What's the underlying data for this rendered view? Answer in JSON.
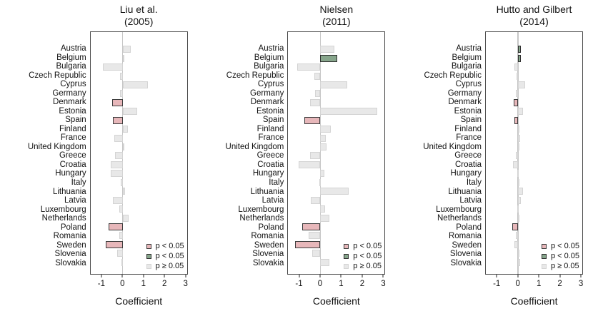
{
  "figure": {
    "x_range": [
      -1.55,
      3.1
    ],
    "x_ticks": [
      -1,
      0,
      1,
      2,
      3
    ],
    "axis_label": "Coefficient",
    "legend": [
      {
        "key": "sig_neg",
        "label": "p < 0.05"
      },
      {
        "key": "sig_pos",
        "label": "p < 0.05"
      },
      {
        "key": "ns",
        "label": "p ≥ 0.05"
      }
    ],
    "colors": {
      "sig_neg": {
        "fill": "#e7b7ba",
        "border": "#3c3c3c"
      },
      "sig_pos": {
        "fill": "#87a68c",
        "border": "#2e2e2e"
      },
      "ns": {
        "fill": "#e8e8e8",
        "border": "#d4d4d4"
      },
      "zero_line": "#c6c6c6",
      "box_border": "#4a4a4a"
    }
  },
  "chart_data": [
    {
      "type": "bar",
      "orientation": "horizontal",
      "title": "Liu et al.",
      "subtitle": "(2005)",
      "xlabel": "Coefficient",
      "xlim": [
        -1.55,
        3.1
      ],
      "x_ticks": [
        -1,
        0,
        1,
        2,
        3
      ],
      "grid": false,
      "legend_position": "bottom-right-inside",
      "categories": [
        "Austria",
        "Belgium",
        "Bulgaria",
        "Czech Republic",
        "Cyprus",
        "Germany",
        "Denmark",
        "Estonia",
        "Spain",
        "Finland",
        "France",
        "United Kingdom",
        "Greece",
        "Croatia",
        "Hungary",
        "Italy",
        "Lithuania",
        "Latvia",
        "Luxembourg",
        "Netherlands",
        "Poland",
        "Romania",
        "Sweden",
        "Slovenia",
        "Slovakia"
      ],
      "values": [
        0.4,
        0.08,
        -0.94,
        -0.13,
        1.21,
        -0.12,
        -0.5,
        0.7,
        -0.48,
        0.25,
        -0.4,
        0.02,
        -0.37,
        -0.58,
        -0.58,
        -0.08,
        0.1,
        -0.47,
        -0.17,
        0.27,
        -0.67,
        -0.15,
        -0.81,
        -0.28,
        -0.07
      ],
      "significance": [
        "ns",
        "ns",
        "ns",
        "ns",
        "ns",
        "ns",
        "sig_neg",
        "ns",
        "sig_neg",
        "ns",
        "ns",
        "ns",
        "ns",
        "ns",
        "ns",
        "ns",
        "ns",
        "ns",
        "ns",
        "ns",
        "sig_neg",
        "ns",
        "sig_neg",
        "ns",
        "ns"
      ]
    },
    {
      "type": "bar",
      "orientation": "horizontal",
      "title": "Nielsen",
      "subtitle": "(2011)",
      "xlabel": "Coefficient",
      "xlim": [
        -1.55,
        3.1
      ],
      "x_ticks": [
        -1,
        0,
        1,
        2,
        3
      ],
      "grid": false,
      "legend_position": "bottom-right-inside",
      "categories": [
        "Austria",
        "Belgium",
        "Bulgaria",
        "Czech Republic",
        "Cyprus",
        "Germany",
        "Denmark",
        "Estonia",
        "Spain",
        "Finland",
        "France",
        "United Kingdom",
        "Greece",
        "Croatia",
        "Hungary",
        "Italy",
        "Lithuania",
        "Latvia",
        "Luxembourg",
        "Netherlands",
        "Poland",
        "Romania",
        "Sweden",
        "Slovenia",
        "Slovakia"
      ],
      "values": [
        0.68,
        0.8,
        -1.11,
        -0.28,
        1.3,
        -0.26,
        -0.48,
        2.75,
        -0.76,
        0.49,
        0.26,
        0.31,
        -0.5,
        -1.06,
        0.19,
        -0.06,
        1.36,
        -0.45,
        0.22,
        0.45,
        -0.88,
        -0.55,
        -1.21,
        -0.4,
        0.43
      ],
      "significance": [
        "ns",
        "sig_pos",
        "ns",
        "ns",
        "ns",
        "ns",
        "ns",
        "ns",
        "sig_neg",
        "ns",
        "ns",
        "ns",
        "ns",
        "ns",
        "ns",
        "ns",
        "ns",
        "ns",
        "ns",
        "ns",
        "sig_neg",
        "ns",
        "sig_neg",
        "ns",
        "ns"
      ]
    },
    {
      "type": "bar",
      "orientation": "horizontal",
      "title": "Hutto and Gilbert",
      "subtitle": "(2014)",
      "xlabel": "Coefficient",
      "xlim": [
        -1.55,
        3.1
      ],
      "x_ticks": [
        -1,
        0,
        1,
        2,
        3
      ],
      "grid": false,
      "legend_position": "bottom-right-inside",
      "categories": [
        "Austria",
        "Belgium",
        "Bulgaria",
        "Czech Republic",
        "Cyprus",
        "Germany",
        "Denmark",
        "Estonia",
        "Spain",
        "Finland",
        "France",
        "United Kingdom",
        "Greece",
        "Croatia",
        "Hungary",
        "Italy",
        "Lithuania",
        "Latvia",
        "Luxembourg",
        "Netherlands",
        "Poland",
        "Romania",
        "Sweden",
        "Slovenia",
        "Slovakia"
      ],
      "values": [
        0.15,
        0.15,
        -0.17,
        -0.06,
        0.35,
        -0.1,
        -0.2,
        0.24,
        -0.17,
        0.02,
        0.12,
        0.08,
        -0.1,
        -0.25,
        -0.05,
        0.02,
        0.23,
        0.13,
        -0.03,
        0.03,
        -0.26,
        -0.11,
        -0.17,
        0.07,
        0.12
      ],
      "significance": [
        "sig_pos",
        "sig_pos",
        "ns",
        "ns",
        "ns",
        "ns",
        "sig_neg",
        "ns",
        "sig_neg",
        "ns",
        "ns",
        "ns",
        "ns",
        "ns",
        "ns",
        "ns",
        "ns",
        "ns",
        "ns",
        "ns",
        "sig_neg",
        "ns",
        "ns",
        "ns",
        "ns"
      ]
    }
  ]
}
